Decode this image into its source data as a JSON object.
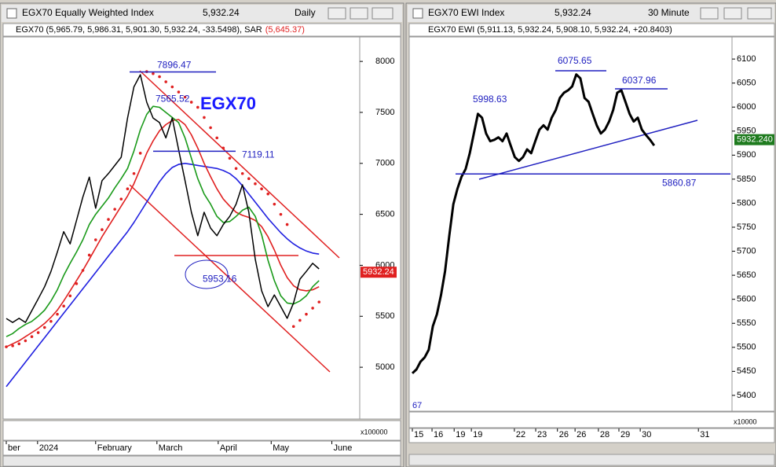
{
  "windows": [
    {
      "title": "EGX70 Equally Weighted Index",
      "price": "5,932.24",
      "interval": "Daily",
      "info": "EGX70 (5,965.79, 5,986.31, 5,901.30, 5,932.24, -33.5498), SAR",
      "info_sar": "(5,645.37)",
      "volume_scale": "x100000"
    },
    {
      "title": "EGX70 EWI Index",
      "price": "5,932.24",
      "interval": "30 Minute",
      "info": "EGX70 EWI (5,911.13, 5,932.24, 5,908.10, 5,932.24, +20.8403)",
      "volume_scale": "x10000",
      "corner_label": "67"
    }
  ],
  "chart_data": [
    {
      "type": "line",
      "label": "EGX70",
      "xlim": [
        0,
        55
      ],
      "xticks": [
        {
          "value": 0,
          "label": "ber"
        },
        {
          "value": 4.9,
          "label": "2024"
        },
        {
          "value": 14,
          "label": "February"
        },
        {
          "value": 23.6,
          "label": "March"
        },
        {
          "value": 33.2,
          "label": "April"
        },
        {
          "value": 41.5,
          "label": "May"
        },
        {
          "value": 51,
          "label": "June"
        }
      ],
      "ylim": [
        4515,
        8240
      ],
      "yticks": [
        5000,
        5500,
        6000,
        6500,
        7000,
        7500,
        8000
      ],
      "series": [
        {
          "name": "Blue MA",
          "color": "#2020e0",
          "values": [
            4810,
            4890,
            4970,
            5050,
            5130,
            5210,
            5290,
            5370,
            5450,
            5530,
            5610,
            5690,
            5770,
            5850,
            5930,
            6010,
            6090,
            6170,
            6250,
            6330,
            6420,
            6520,
            6620,
            6720,
            6820,
            6900,
            6960,
            6990,
            7000,
            6990,
            6980,
            6970,
            6960,
            6950,
            6930,
            6900,
            6850,
            6780,
            6700,
            6620,
            6540,
            6460,
            6390,
            6320,
            6260,
            6210,
            6170,
            6140,
            6120,
            6110
          ]
        },
        {
          "name": "Red MA",
          "color": "#e02020",
          "values": [
            5200,
            5230,
            5260,
            5300,
            5340,
            5380,
            5430,
            5490,
            5560,
            5650,
            5750,
            5850,
            5950,
            6060,
            6170,
            6280,
            6380,
            6480,
            6580,
            6680,
            6800,
            6950,
            7100,
            7220,
            7320,
            7380,
            7420,
            7430,
            7380,
            7280,
            7150,
            7000,
            6870,
            6750,
            6650,
            6580,
            6520,
            6490,
            6470,
            6440,
            6380,
            6280,
            6150,
            6000,
            5880,
            5800,
            5760,
            5750,
            5760,
            5790
          ]
        },
        {
          "name": "Green MA",
          "color": "#1a9a1a",
          "values": [
            5300,
            5330,
            5380,
            5420,
            5450,
            5500,
            5560,
            5650,
            5760,
            5900,
            6020,
            6130,
            6250,
            6400,
            6500,
            6580,
            6660,
            6760,
            6850,
            6950,
            7120,
            7330,
            7480,
            7560,
            7550,
            7500,
            7450,
            7400,
            7250,
            7050,
            6850,
            6700,
            6600,
            6480,
            6420,
            6430,
            6480,
            6540,
            6570,
            6480,
            6300,
            6050,
            5850,
            5700,
            5630,
            5620,
            5650,
            5700,
            5790,
            5850
          ]
        },
        {
          "name": "SAR",
          "color": "#e02020",
          "marker": "dots",
          "values": [
            5200,
            5210,
            5230,
            5260,
            5300,
            5340,
            5390,
            5450,
            5520,
            5600,
            5700,
            5820,
            5950,
            6100,
            6250,
            6350,
            6450,
            6550,
            6650,
            6750,
            6900,
            7100,
            7900,
            7880,
            7850,
            7800,
            7750,
            7700,
            7650,
            7600,
            7550,
            7450,
            7350,
            7250,
            7150,
            7050,
            6950,
            6900,
            6850,
            6800,
            6750,
            6700,
            6600,
            6500,
            6400,
            5400,
            5460,
            5520,
            5580,
            5640
          ]
        },
        {
          "name": "EGX70",
          "color": "#000000",
          "values": [
            5478,
            5440,
            5480,
            5440,
            5555,
            5670,
            5790,
            5940,
            6130,
            6330,
            6210,
            6440,
            6670,
            6865,
            6560,
            6830,
            6900,
            6980,
            7060,
            7445,
            7750,
            7870,
            7600,
            7445,
            7400,
            7250,
            7445,
            7135,
            6830,
            6520,
            6290,
            6520,
            6365,
            6290,
            6400,
            6480,
            6600,
            6790,
            6520,
            6060,
            5750,
            5595,
            5710,
            5595,
            5480,
            5630,
            5865,
            5940,
            6020,
            5965
          ]
        }
      ],
      "annotations": [
        {
          "value": 7896.47
        },
        {
          "value": 7565.52
        },
        {
          "value": 7119.11
        },
        {
          "value": 5953.16
        }
      ],
      "last_value": 5932.24,
      "last_color": "#e02020"
    },
    {
      "type": "line",
      "xlim": [
        0,
        78
      ],
      "xticks": [
        {
          "value": 0,
          "label": "15"
        },
        {
          "value": 4.8,
          "label": "16"
        },
        {
          "value": 10.2,
          "label": "19"
        },
        {
          "value": 14.4,
          "label": "19"
        },
        {
          "value": 24.9,
          "label": "22"
        },
        {
          "value": 30.1,
          "label": "23"
        },
        {
          "value": 35.4,
          "label": "26"
        },
        {
          "value": 39.7,
          "label": "26"
        },
        {
          "value": 45.4,
          "label": "28"
        },
        {
          "value": 50.4,
          "label": "29"
        },
        {
          "value": 55.6,
          "label": "30"
        },
        {
          "value": 69.8,
          "label": "31"
        }
      ],
      "ylim": [
        5372,
        6146
      ],
      "yticks": [
        5400,
        5450,
        5500,
        5550,
        5600,
        5650,
        5700,
        5750,
        5800,
        5850,
        5900,
        5950,
        6000,
        6050,
        6100
      ],
      "series": [
        {
          "name": "EGX70 EWI",
          "color": "#000000",
          "values": [
            5446,
            5454,
            5470,
            5479,
            5495,
            5544,
            5569,
            5609,
            5659,
            5732,
            5798,
            5830,
            5855,
            5871,
            5904,
            5945,
            5986,
            5978,
            5945,
            5929,
            5932,
            5937,
            5929,
            5945,
            5920,
            5896,
            5888,
            5896,
            5912,
            5904,
            5929,
            5953,
            5962,
            5953,
            5978,
            5994,
            6019,
            6030,
            6035,
            6043,
            6068,
            6060,
            6019,
            6011,
            5986,
            5962,
            5945,
            5953,
            5970,
            5994,
            6030,
            6035,
            6011,
            5986,
            5970,
            5978,
            5953,
            5942,
            5932,
            5920
          ]
        }
      ],
      "annotations": [
        {
          "value": 5998.63
        },
        {
          "value": 6075.65
        },
        {
          "value": 6037.96
        },
        {
          "value": 5860.87
        }
      ],
      "last_value": 5932.24,
      "last_value_label": "5932.240",
      "last_color": "#1e7b1e"
    }
  ]
}
